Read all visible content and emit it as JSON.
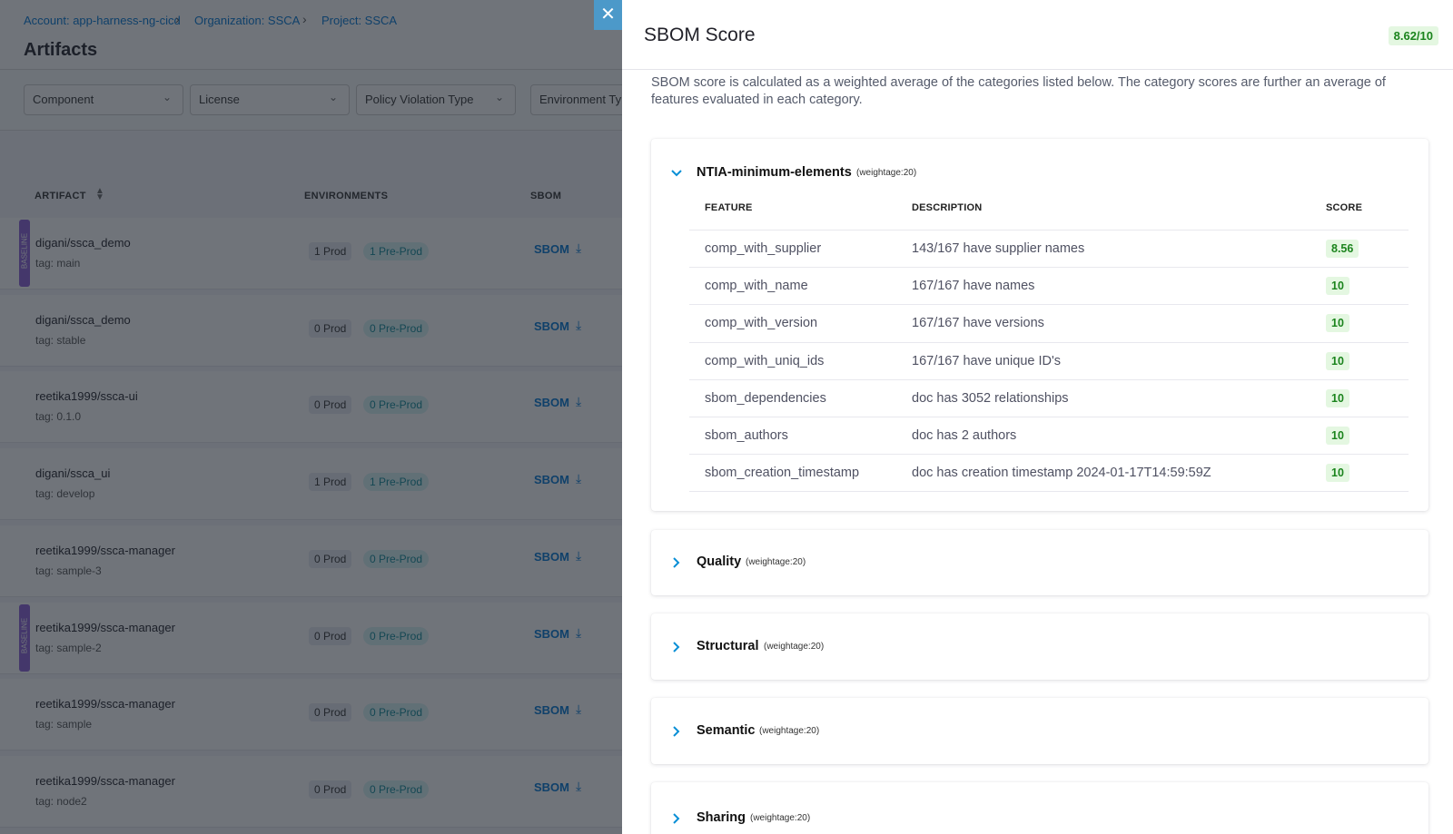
{
  "breadcrumbs": [
    "Account: app-harness-ng-cicd",
    "Organization: SSCA",
    "Project: SSCA"
  ],
  "page_title": "Artifacts",
  "filters": [
    "Component",
    "License",
    "Policy Violation Type",
    "Environment Type"
  ],
  "table": {
    "headers": [
      "ARTIFACT",
      "ENVIRONMENTS",
      "SBOM"
    ],
    "rows": [
      {
        "name": "digani/ssca_demo",
        "tag": "tag: main",
        "prod": "1 Prod",
        "preprod": "1 Pre-Prod",
        "sbom": "SBOM",
        "baseline": "BASELINE"
      },
      {
        "name": "digani/ssca_demo",
        "tag": "tag: stable",
        "prod": "0 Prod",
        "preprod": "0 Pre-Prod",
        "sbom": "SBOM"
      },
      {
        "name": "reetika1999/ssca-ui",
        "tag": "tag: 0.1.0",
        "prod": "0 Prod",
        "preprod": "0 Pre-Prod",
        "sbom": "SBOM"
      },
      {
        "name": "digani/ssca_ui",
        "tag": "tag: develop",
        "prod": "1 Prod",
        "preprod": "1 Pre-Prod",
        "sbom": "SBOM"
      },
      {
        "name": "reetika1999/ssca-manager",
        "tag": "tag: sample-3",
        "prod": "0 Prod",
        "preprod": "0 Pre-Prod",
        "sbom": "SBOM"
      },
      {
        "name": "reetika1999/ssca-manager",
        "tag": "tag: sample-2",
        "prod": "0 Prod",
        "preprod": "0 Pre-Prod",
        "sbom": "SBOM",
        "baseline": "BASELINE"
      },
      {
        "name": "reetika1999/ssca-manager",
        "tag": "tag: sample",
        "prod": "0 Prod",
        "preprod": "0 Pre-Prod",
        "sbom": "SBOM"
      },
      {
        "name": "reetika1999/ssca-manager",
        "tag": "tag: node2",
        "prod": "0 Prod",
        "preprod": "0 Pre-Prod",
        "sbom": "SBOM"
      }
    ]
  },
  "drawer": {
    "title": "SBOM Score",
    "score": "8.62/10",
    "description": "SBOM score is calculated as a weighted average of the categories listed below. The category scores are further an average of features evaluated in each category.",
    "sections": [
      {
        "name": "NTIA-minimum-elements",
        "weightage": "(weightage:20)",
        "columns": [
          "FEATURE",
          "DESCRIPTION",
          "SCORE"
        ],
        "features": [
          [
            "comp_with_supplier",
            "143/167 have supplier names",
            8.56
          ],
          [
            "comp_with_name",
            "167/167 have names",
            10
          ],
          [
            "comp_with_version",
            "167/167 have versions",
            10
          ],
          [
            "comp_with_uniq_ids",
            "167/167 have unique ID's",
            10
          ],
          [
            "sbom_dependencies",
            "doc has 3052 relationships",
            10
          ],
          [
            "sbom_authors",
            "doc has 2 authors",
            10
          ],
          [
            "sbom_creation_timestamp",
            "doc has creation timestamp 2024-01-17T14:59:59Z",
            10
          ]
        ]
      },
      {
        "name": "Quality",
        "weightage": "(weightage:20)"
      },
      {
        "name": "Structural",
        "weightage": "(weightage:20)"
      },
      {
        "name": "Semantic",
        "weightage": "(weightage:20)"
      },
      {
        "name": "Sharing",
        "weightage": "(weightage:20)"
      }
    ]
  }
}
